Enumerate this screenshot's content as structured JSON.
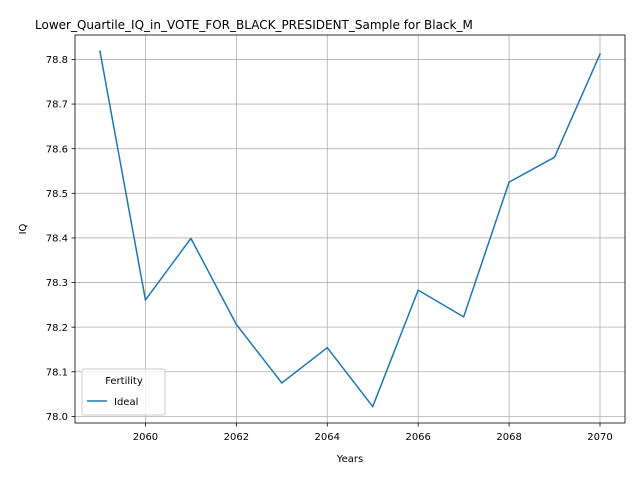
{
  "chart_data": {
    "type": "line",
    "title": "Lower_Quartile_IQ_in_VOTE_FOR_BLACK_PRESIDENT_Sample for Black_M",
    "xlabel": "Years",
    "ylabel": "IQ",
    "x": [
      2059,
      2060,
      2061,
      2062,
      2063,
      2064,
      2065,
      2066,
      2067,
      2068,
      2069,
      2070
    ],
    "series": [
      {
        "name": "Ideal",
        "color": "#1f77b4",
        "values": [
          78.818,
          78.261,
          78.399,
          78.206,
          78.075,
          78.154,
          78.022,
          78.283,
          78.223,
          78.525,
          78.581,
          78.812
        ]
      }
    ],
    "xlim": [
      2058.45,
      2070.55
    ],
    "ylim": [
      77.9852,
      78.8548
    ],
    "xticks": [
      2060,
      2062,
      2064,
      2066,
      2068,
      2070
    ],
    "yticks": [
      78.0,
      78.1,
      78.2,
      78.3,
      78.4,
      78.5,
      78.6,
      78.7,
      78.8
    ],
    "grid": true,
    "legend": {
      "title": "Fertility",
      "placement": "lower-left"
    }
  }
}
